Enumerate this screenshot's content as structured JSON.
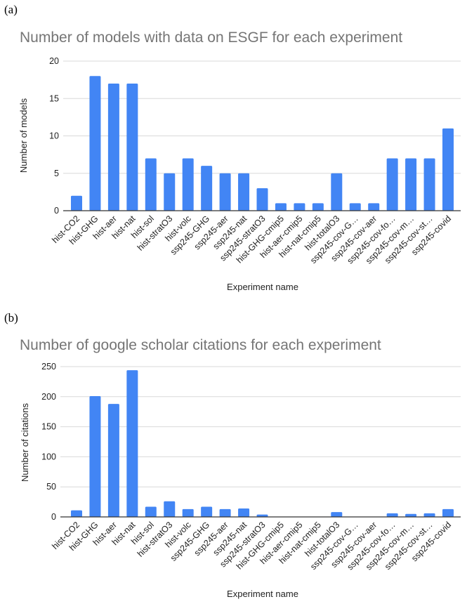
{
  "chart_data": [
    {
      "type": "bar",
      "panel_label": "(a)",
      "title": "Number of models with data on ESGF for each experiment",
      "xlabel": "Experiment name",
      "ylabel": "Number of  models",
      "ylim": [
        0,
        20
      ],
      "yticks": [
        0,
        5,
        10,
        15,
        20
      ],
      "grid": true,
      "color": "#4285F4",
      "categories": [
        "hist-CO2",
        "hist-GHG",
        "hist-aer",
        "hist-nat",
        "hist-sol",
        "hist-stratO3",
        "hist-volc",
        "ssp245-GHG",
        "ssp245-aer",
        "ssp245-nat",
        "ssp245-stratO3",
        "hist-GHG-cmip5",
        "hist-aer-cmip5",
        "hist-nat-cmip5",
        "hist-totalO3",
        "ssp245-cov-G…",
        "ssp245-cov-aer",
        "ssp245-cov-fo…",
        "ssp245-cov-m…",
        "ssp245-cov-st…",
        "ssp245-covid"
      ],
      "values": [
        2,
        18,
        17,
        17,
        7,
        5,
        7,
        6,
        5,
        5,
        3,
        1,
        1,
        1,
        5,
        1,
        1,
        7,
        7,
        7,
        11
      ]
    },
    {
      "type": "bar",
      "panel_label": "(b)",
      "title": "Number of google scholar citations for each experiment",
      "xlabel": "Experiment name",
      "ylabel": "Number of citations",
      "ylim": [
        0,
        250
      ],
      "yticks": [
        0,
        50,
        100,
        150,
        200,
        250
      ],
      "grid": true,
      "color": "#4285F4",
      "categories": [
        "hist-CO2",
        "hist-GHG",
        "hist-aer",
        "hist-nat",
        "hist-sol",
        "hist-stratO3",
        "hist-volc",
        "ssp245-GHG",
        "ssp245-aer",
        "ssp245-nat",
        "ssp245-stratO3",
        "hist-GHG-cmip5",
        "hist-aer-cmip5",
        "hist-nat-cmip5",
        "hist-totalO3",
        "ssp245-cov-G…",
        "ssp245-cov-aer",
        "ssp245-cov-fo…",
        "ssp245-cov-m…",
        "ssp245-cov-st…",
        "ssp245-covid"
      ],
      "values": [
        11,
        201,
        188,
        244,
        17,
        26,
        13,
        17,
        13,
        14,
        4,
        0.5,
        0.5,
        0.5,
        8,
        0.5,
        0.5,
        6,
        5,
        6,
        13
      ]
    }
  ]
}
